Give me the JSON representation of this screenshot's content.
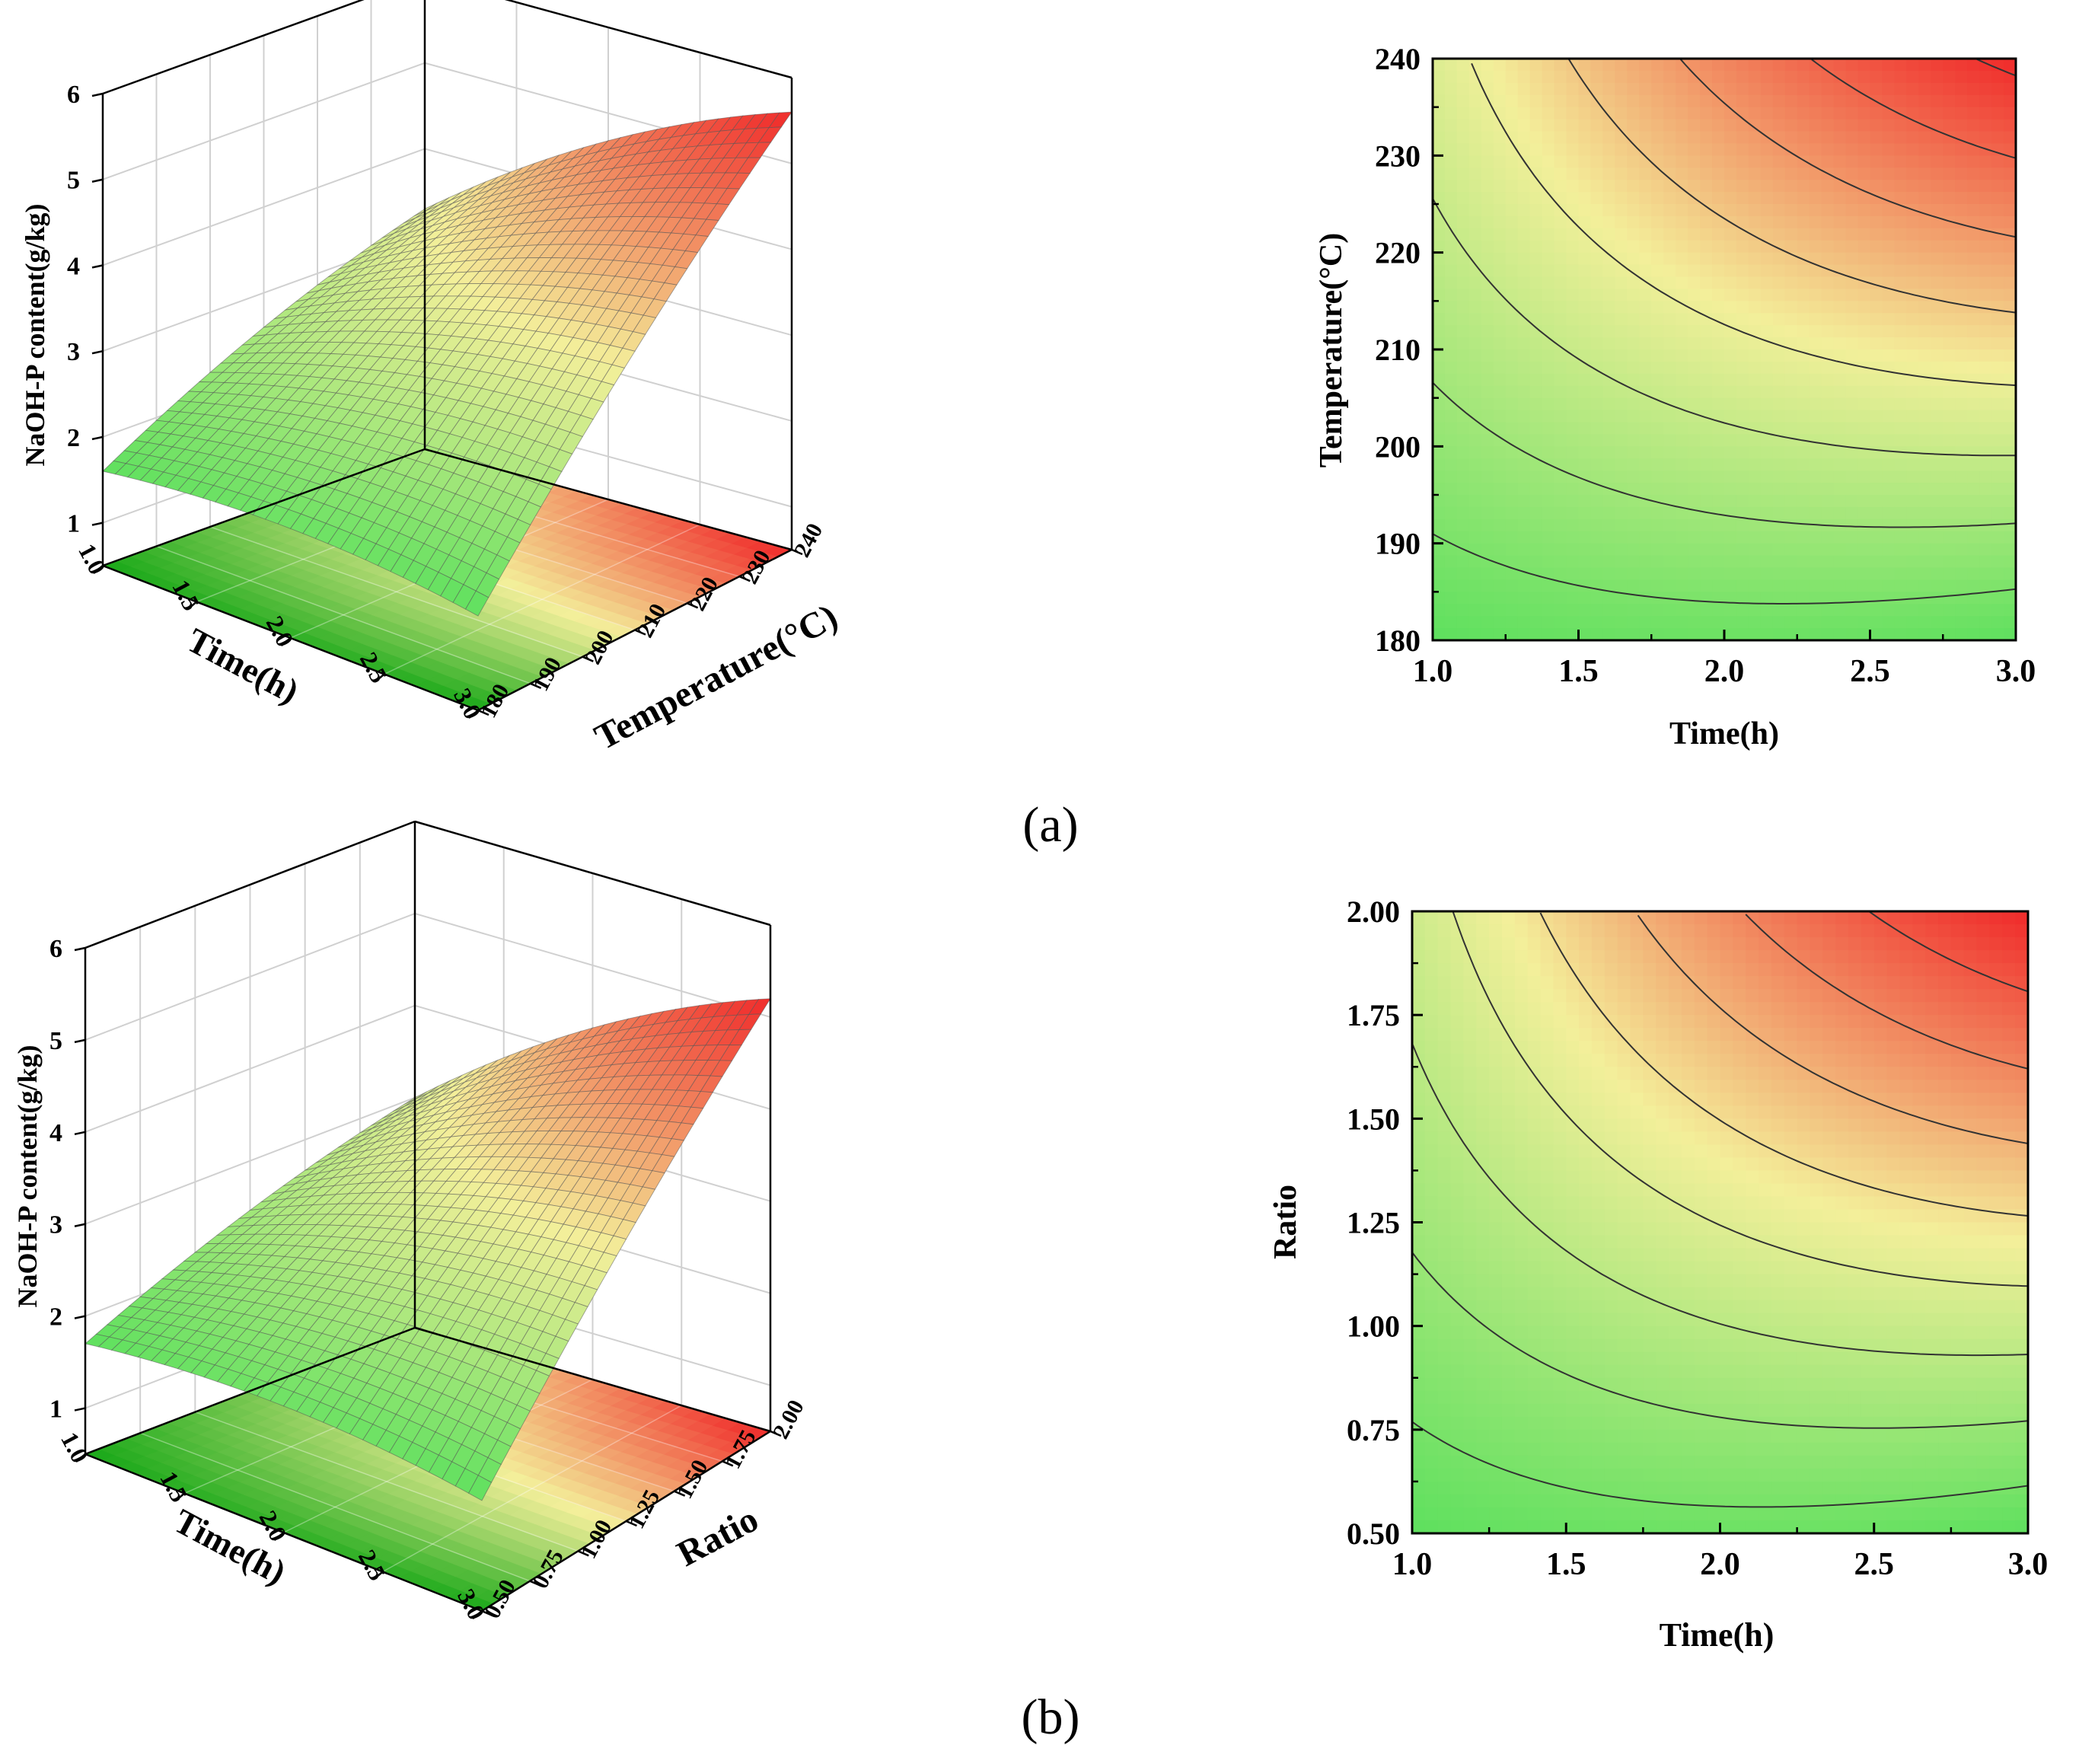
{
  "colors": {
    "low": "#5ee05e",
    "mid": "#f3ef9a",
    "high": "#f02a2a",
    "floor_low": "#18a818",
    "axis": "#000000",
    "grid": "#d0d0d0",
    "mesh": "#555555"
  },
  "chart_data": [
    {
      "type": "surface3d",
      "panel": "a",
      "zlabel": "NaOH-P content(g/kg)",
      "xlabel": "Time(h)",
      "ylabel": "Temperature(°C)",
      "x_ticks": [
        "1.0",
        "1.5",
        "2.0",
        "2.5",
        "3.0"
      ],
      "y_ticks": [
        "180",
        "190",
        "200",
        "210",
        "220",
        "230",
        "240"
      ],
      "z_ticks": [
        "1",
        "2",
        "3",
        "4",
        "5",
        "6"
      ],
      "xlim": [
        1.0,
        3.0
      ],
      "ylim": [
        180,
        240
      ],
      "zlim": [
        0.5,
        6
      ],
      "corner_values": {
        "t1_low": 1.6,
        "t3_low": 1.6,
        "t1_high": 3.3,
        "t3_high": 5.6
      }
    },
    {
      "type": "contour",
      "panel": "a",
      "xlabel": "Time(h)",
      "ylabel": "Temperature(°C)",
      "x_ticks": [
        "1.0",
        "1.5",
        "2.0",
        "2.5",
        "3.0"
      ],
      "y_ticks": [
        "180",
        "190",
        "200",
        "210",
        "220",
        "230",
        "240"
      ],
      "xlim": [
        1.0,
        3.0
      ],
      "ylim": [
        180,
        240
      ],
      "contour_levels": [
        2.0,
        2.5,
        3.0,
        3.5,
        4.0,
        4.5,
        5.0,
        5.5
      ]
    },
    {
      "type": "surface3d",
      "panel": "b",
      "zlabel": "NaOH-P content(g/kg)",
      "xlabel": "Time(h)",
      "ylabel": "Ratio",
      "x_ticks": [
        "1.0",
        "1.5",
        "2.0",
        "2.5",
        "3.0"
      ],
      "y_ticks": [
        "0.50",
        "0.75",
        "1.00",
        "1.25",
        "1.50",
        "1.75",
        "2.00"
      ],
      "z_ticks": [
        "1",
        "2",
        "3",
        "4",
        "5",
        "6"
      ],
      "xlim": [
        1.0,
        3.0
      ],
      "ylim": [
        0.5,
        2.0
      ],
      "zlim": [
        0.5,
        6
      ],
      "corner_values": {
        "t1_low": 1.7,
        "t3_low": 1.7,
        "t1_high": 3.0,
        "t3_high": 5.2
      }
    },
    {
      "type": "contour",
      "panel": "b",
      "xlabel": "Time(h)",
      "ylabel": "Ratio",
      "x_ticks": [
        "1.0",
        "1.5",
        "2.0",
        "2.5",
        "3.0"
      ],
      "y_ticks": [
        "0.50",
        "0.75",
        "1.00",
        "1.25",
        "1.50",
        "1.75",
        "2.00"
      ],
      "xlim": [
        1.0,
        3.0
      ],
      "ylim": [
        0.5,
        2.0
      ],
      "contour_levels": [
        2.0,
        2.4,
        2.8,
        3.2,
        3.6,
        4.0,
        4.4,
        4.8
      ]
    }
  ],
  "panel_labels": {
    "a": "(a)",
    "b": "(b)"
  }
}
